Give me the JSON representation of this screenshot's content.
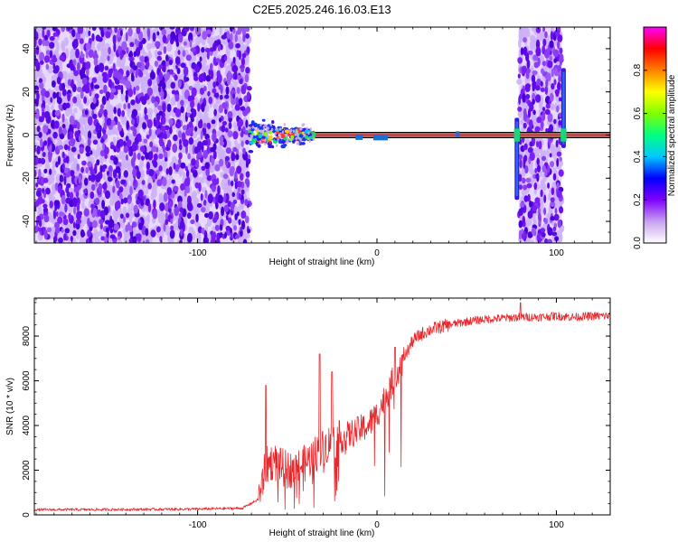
{
  "title": "C2E5.2025.246.16.03.E13",
  "chart_data": [
    {
      "type": "heatmap",
      "title": "C2E5.2025.246.16.03.E13",
      "xlabel": "Height of straight line (km)",
      "ylabel": "Frequency (Hz)",
      "xlim": [
        -191,
        130
      ],
      "ylim": [
        -50,
        50
      ],
      "x_ticks": [
        -100,
        0,
        100
      ],
      "x_tick_labels": [
        "-100",
        "0",
        "100"
      ],
      "y_ticks": [
        -40,
        -20,
        0,
        20,
        40
      ],
      "y_tick_labels": [
        "-40",
        "-20",
        "0",
        "20",
        "40"
      ],
      "colorbar": {
        "label": "Normalized spectral amplitude",
        "range": [
          0.0,
          1.0
        ],
        "ticks": [
          0.0,
          0.2,
          0.4,
          0.6,
          0.8
        ],
        "tick_labels": [
          "0.0",
          "0.2",
          "0.4",
          "0.6",
          "0.8"
        ],
        "colormap": [
          "#ffffff",
          "#c8a0f0",
          "#8000ff",
          "#0000ff",
          "#00c8ff",
          "#00ff80",
          "#80ff00",
          "#ffff00",
          "#ff8000",
          "#ff0000",
          "#ff00ff"
        ]
      },
      "regions": [
        {
          "name": "noise-left",
          "x_range": [
            -191,
            -71
          ],
          "freq_range": [
            -50,
            50
          ],
          "amplitude": 0.1
        },
        {
          "name": "onset-band",
          "x_range": [
            -71,
            -35
          ],
          "freq_range": [
            -3,
            3
          ],
          "amplitude": 0.45
        },
        {
          "name": "carrier-line",
          "x_range": [
            -35,
            130
          ],
          "freq": 0,
          "amplitude": 0.95
        },
        {
          "name": "noise-right",
          "x_range": [
            79,
            103
          ],
          "freq_range": [
            -50,
            50
          ],
          "amplitude": 0.1
        },
        {
          "name": "spike-1",
          "x": 78,
          "freq_range": [
            -30,
            8
          ],
          "amplitude": 0.3
        },
        {
          "name": "spike-2",
          "x": 104,
          "freq_range": [
            -6,
            31
          ],
          "amplitude": 0.3
        }
      ]
    },
    {
      "type": "line",
      "xlabel": "Height of straight line (km)",
      "ylabel": "SNR (10 * v/v)",
      "xlim": [
        -191,
        130
      ],
      "ylim": [
        0,
        9700
      ],
      "x_ticks": [
        -100,
        0,
        100
      ],
      "x_tick_labels": [
        "-100",
        "0",
        "100"
      ],
      "y_ticks": [
        0,
        2000,
        4000,
        6000,
        8000
      ],
      "y_tick_labels": [
        "0",
        "2000",
        "4000",
        "6000",
        "8000"
      ],
      "color": "#e8282c",
      "series": [
        {
          "name": "SNR",
          "x": [
            -191,
            -150,
            -100,
            -75,
            -66,
            -62,
            -58,
            -54,
            -50,
            -45,
            -40,
            -35,
            -30,
            -25,
            -20,
            -15,
            -10,
            -5,
            0,
            5,
            10,
            15,
            20,
            25,
            30,
            40,
            50,
            60,
            70,
            80,
            90,
            100,
            110,
            120,
            130
          ],
          "y": [
            230,
            240,
            260,
            300,
            700,
            2200,
            2400,
            2200,
            2000,
            2100,
            2300,
            2700,
            3000,
            3300,
            3400,
            3600,
            3800,
            4000,
            4500,
            5300,
            6200,
            7000,
            7800,
            8100,
            8300,
            8500,
            8650,
            8750,
            8800,
            8850,
            8850,
            8900,
            8850,
            8900,
            8900
          ]
        }
      ],
      "peaks": [
        {
          "x": -62,
          "y": 5800
        },
        {
          "x": -32,
          "y": 7200
        },
        {
          "x": -25,
          "y": 6400
        },
        {
          "x": 10,
          "y": 7500
        },
        {
          "x": 80,
          "y": 9500
        }
      ]
    }
  ]
}
